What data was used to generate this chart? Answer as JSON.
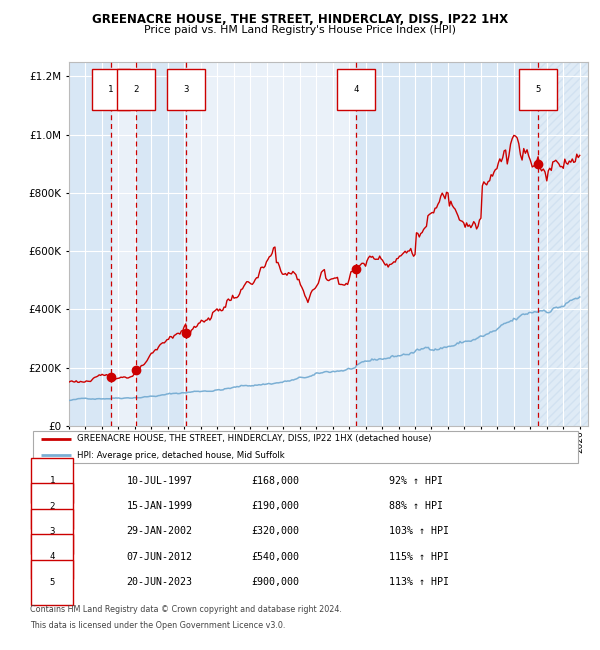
{
  "title": "GREENACRE HOUSE, THE STREET, HINDERCLAY, DISS, IP22 1HX",
  "subtitle": "Price paid vs. HM Land Registry's House Price Index (HPI)",
  "sales": [
    {
      "num": 1,
      "date_str": "10-JUL-1997",
      "year": 1997.53,
      "price": 168000,
      "pct": "92% ↑ HPI"
    },
    {
      "num": 2,
      "date_str": "15-JAN-1999",
      "year": 1999.04,
      "price": 190000,
      "pct": "88% ↑ HPI"
    },
    {
      "num": 3,
      "date_str": "29-JAN-2002",
      "year": 2002.08,
      "price": 320000,
      "pct": "103% ↑ HPI"
    },
    {
      "num": 4,
      "date_str": "07-JUN-2012",
      "year": 2012.44,
      "price": 540000,
      "pct": "115% ↑ HPI"
    },
    {
      "num": 5,
      "date_str": "20-JUN-2023",
      "year": 2023.47,
      "price": 900000,
      "pct": "113% ↑ HPI"
    }
  ],
  "legend_label_red": "GREENACRE HOUSE, THE STREET, HINDERCLAY, DISS, IP22 1HX (detached house)",
  "legend_label_blue": "HPI: Average price, detached house, Mid Suffolk",
  "footer1": "Contains HM Land Registry data © Crown copyright and database right 2024.",
  "footer2": "This data is licensed under the Open Government Licence v3.0.",
  "ylim": [
    0,
    1250000
  ],
  "xlim_start": 1995.0,
  "xlim_end": 2026.5,
  "plot_bg": "#eaf1f9",
  "grid_color": "#ffffff",
  "red_line_color": "#cc0000",
  "blue_line_color": "#7bafd4",
  "sale_dot_color": "#cc0000",
  "box_edge_color": "#cc0000",
  "shade_color": "#d5e6f5",
  "hatch_color": "#c5d8ec"
}
